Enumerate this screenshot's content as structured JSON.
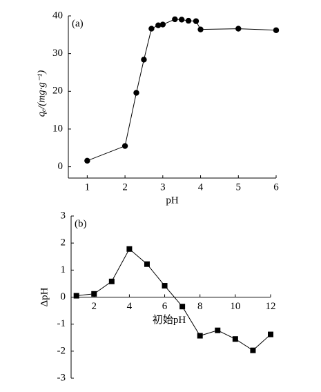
{
  "chart_data": [
    {
      "type": "line",
      "marker": "circle",
      "annotation": "(a)",
      "x_label": "pH",
      "y_label": "qₑ/(mg·g⁻¹)",
      "x": [
        1,
        2,
        2.3,
        2.5,
        2.7,
        2.88,
        3,
        3.32,
        3.5,
        3.68,
        3.88,
        4,
        5,
        6
      ],
      "series": [
        {
          "color": "#000000",
          "values": [
            1.6,
            5.5,
            19.6,
            28.4,
            36.6,
            37.5,
            37.7,
            39.1,
            39,
            38.7,
            38.6,
            36.4,
            36.6,
            36.2
          ]
        }
      ],
      "xlim": [
        0.5,
        6
      ],
      "ylim": [
        -3,
        40
      ],
      "xticks": [
        1,
        2,
        3,
        4,
        5,
        6
      ],
      "yticks": [
        0,
        10,
        20,
        30,
        40
      ],
      "x_axis_at_zero": false
    },
    {
      "type": "line",
      "marker": "square",
      "annotation": "(b)",
      "x_label": "初始pH",
      "y_label": "ΔpH",
      "x": [
        1,
        2,
        3,
        4,
        5,
        6,
        7,
        8,
        9,
        10,
        11,
        12
      ],
      "series": [
        {
          "color": "#000000",
          "values": [
            0.05,
            0.12,
            0.58,
            1.78,
            1.22,
            0.42,
            -0.35,
            -1.43,
            -1.23,
            -1.55,
            -1.97,
            -1.38
          ]
        }
      ],
      "xlim": [
        0.7,
        12
      ],
      "ylim": [
        -3,
        3
      ],
      "xticks": [
        2,
        4,
        6,
        8,
        10,
        12
      ],
      "yticks": [
        -3,
        -2,
        -1,
        0,
        1,
        2,
        3
      ],
      "x_axis_at_zero": true
    }
  ]
}
